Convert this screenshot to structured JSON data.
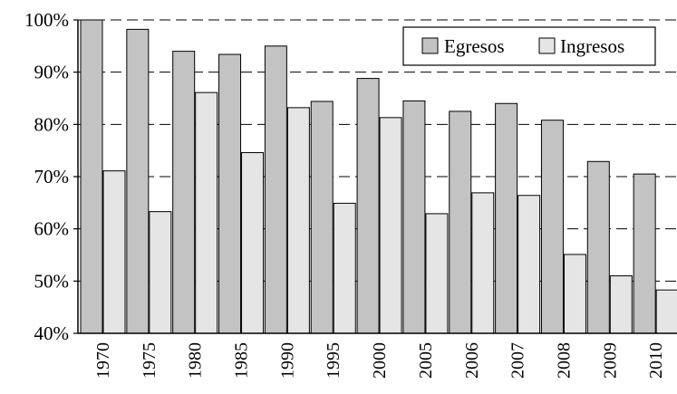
{
  "chart_data": {
    "type": "bar",
    "categories": [
      "1970",
      "1975",
      "1980",
      "1985",
      "1990",
      "1995",
      "2000",
      "2005",
      "2006",
      "2007",
      "2008",
      "2009",
      "2010"
    ],
    "series": [
      {
        "name": "Egresos",
        "color": "#c3c3c3",
        "values": [
          100,
          98.2,
          94,
          93.4,
          95,
          84.4,
          88.8,
          84.5,
          82.5,
          84,
          80.8,
          72.9,
          70.5
        ]
      },
      {
        "name": "Ingresos",
        "color": "#e5e5e5",
        "values": [
          71.1,
          63.3,
          86.1,
          74.6,
          83.2,
          64.9,
          81.3,
          62.9,
          66.9,
          66.4,
          55.1,
          51,
          48.3
        ]
      }
    ],
    "ylim": [
      40,
      100
    ],
    "yticks": [
      "40%",
      "50%",
      "60%",
      "70%",
      "80%",
      "90%",
      "100%"
    ],
    "ytick_values": [
      40,
      50,
      60,
      70,
      80,
      90,
      100
    ],
    "grid": true,
    "legend_position": "top-right"
  }
}
